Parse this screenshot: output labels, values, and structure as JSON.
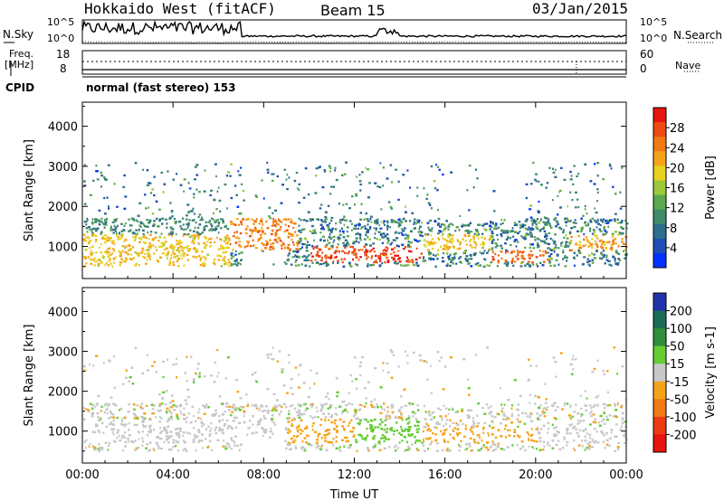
{
  "header": {
    "radar": "Hokkaido West (fitACF)",
    "beam": "Beam 15",
    "date": "03/Jan/2015"
  },
  "top_panels": {
    "nsky_label": "N.Sky",
    "nsearch_label": "N.Search",
    "noise_ticks_top": "10^5",
    "noise_ticks_bottom": "10^0",
    "freq_label_1": "Freq.",
    "freq_label_2": "[MHz]",
    "freq_ticks": [
      "18",
      "8"
    ],
    "nave_label": "Nave",
    "nave_ticks": [
      "60",
      "0"
    ],
    "cpid_label": "CPID",
    "cpid_value": "normal (fast stereo) 153"
  },
  "chart_data": [
    {
      "type": "heatmap",
      "title": "",
      "xlabel": "Time UT",
      "ylabel": "Slant Range [km]",
      "xlim": [
        "00:00",
        "24:00"
      ],
      "x_ticks": [
        "00:00",
        "04:00",
        "08:00",
        "12:00",
        "16:00",
        "20:00",
        "00:00"
      ],
      "ylim": [
        200,
        4600
      ],
      "y_ticks": [
        1000,
        2000,
        3000,
        4000
      ],
      "colorbar": {
        "label": "Power [dB]",
        "range": [
          0,
          32
        ],
        "ticks": [
          4,
          8,
          12,
          16,
          20,
          24,
          28
        ],
        "colors": [
          "#0033ff",
          "#1f4fb4",
          "#2f6e8c",
          "#3f8c6a",
          "#5ba84f",
          "#9cc83c",
          "#e6d21e",
          "#f5a419",
          "#f07a16",
          "#ec4a12",
          "#e8140e"
        ]
      },
      "regions": [
        {
          "t": [
            0.0,
            6.5
          ],
          "range": [
            500,
            1300
          ],
          "value": 20
        },
        {
          "t": [
            0.0,
            6.5
          ],
          "range": [
            1300,
            1800
          ],
          "value": 10
        },
        {
          "t": [
            6.5,
            9.5
          ],
          "range": [
            900,
            1700
          ],
          "value": 24
        },
        {
          "t": [
            10.0,
            15.0
          ],
          "range": [
            600,
            1000
          ],
          "value": 28
        },
        {
          "t": [
            15.0,
            18.0
          ],
          "range": [
            900,
            1300
          ],
          "value": 20
        },
        {
          "t": [
            18.0,
            20.5
          ],
          "range": [
            600,
            900
          ],
          "value": 26
        },
        {
          "t": [
            21.5,
            24.0
          ],
          "range": [
            900,
            1300
          ],
          "value": 22
        }
      ]
    },
    {
      "type": "heatmap",
      "title": "",
      "xlabel": "Time UT",
      "ylabel": "Slant Range [km]",
      "xlim": [
        "00:00",
        "24:00"
      ],
      "x_ticks": [
        "00:00",
        "04:00",
        "08:00",
        "12:00",
        "16:00",
        "20:00",
        "00:00"
      ],
      "ylim": [
        200,
        4600
      ],
      "y_ticks": [
        1000,
        2000,
        3000,
        4000
      ],
      "colorbar": {
        "label": "Velocity [m s-1]",
        "tick_labels": [
          "200",
          "100",
          "50",
          "15",
          "-15",
          "-50",
          "-100",
          "-200"
        ],
        "colors": [
          "#2233aa",
          "#1b6e55",
          "#2e8f3a",
          "#66cc33",
          "#c8c8c8",
          "#f5a419",
          "#f07a16",
          "#ec3a12",
          "#e8140e"
        ]
      },
      "regions": [
        {
          "t": [
            0.0,
            9.0
          ],
          "range": [
            700,
            1300
          ],
          "value": 0
        },
        {
          "t": [
            9.0,
            12.0
          ],
          "range": [
            700,
            1300
          ],
          "value": -40
        },
        {
          "t": [
            12.0,
            15.0
          ],
          "range": [
            700,
            1300
          ],
          "value": 30
        },
        {
          "t": [
            15.0,
            20.0
          ],
          "range": [
            700,
            1100
          ],
          "value": -40
        },
        {
          "t": [
            20.0,
            24.0
          ],
          "range": [
            700,
            1100
          ],
          "value": 0
        }
      ]
    }
  ]
}
